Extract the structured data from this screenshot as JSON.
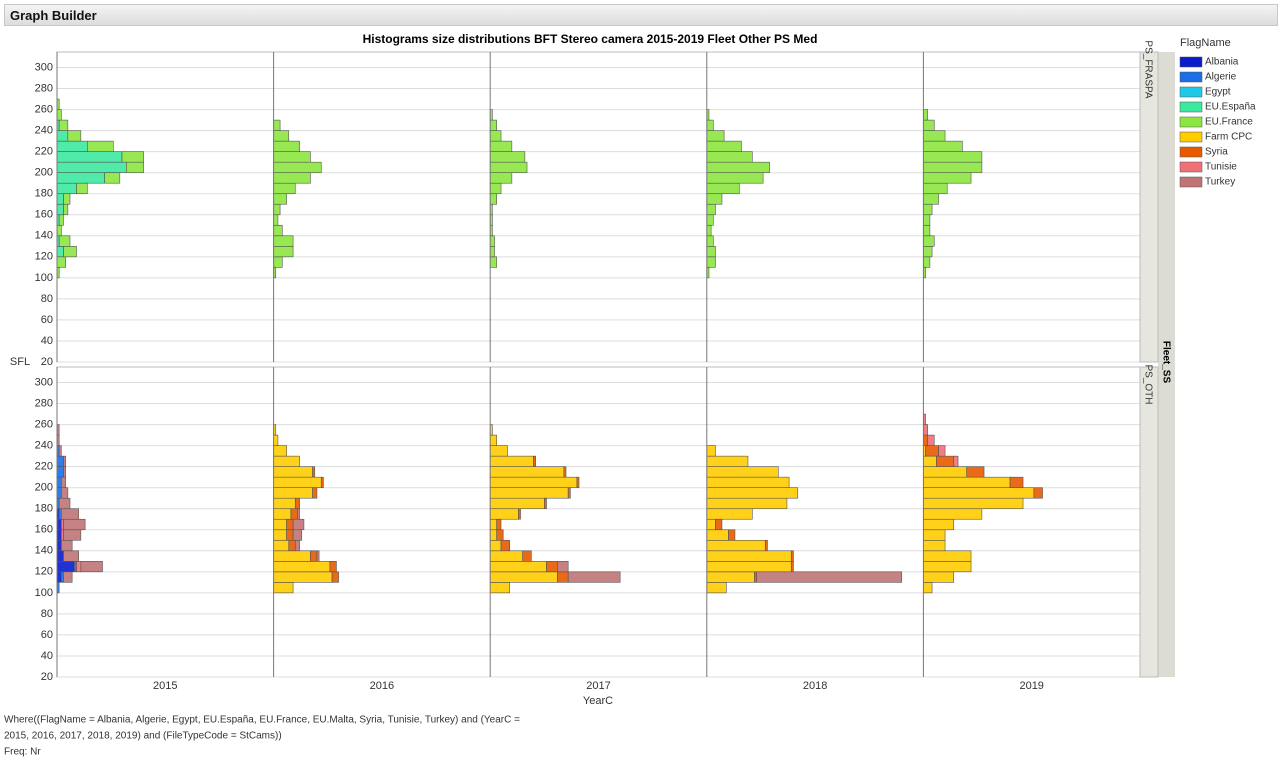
{
  "title_bar": "Graph Builder",
  "chart_data": {
    "type": "histogram",
    "title": "Histograms size distributions BFT Stereo camera 2015-2019 Fleet Other PS Med",
    "y_label": "SFL",
    "x_label": "YearC",
    "group_label": "Fleet_SS",
    "legend_title": "FlagName",
    "columns": [
      "2015",
      "2016",
      "2017",
      "2018",
      "2019"
    ],
    "rows": [
      "PS_FRASPA",
      "PS_OTH"
    ],
    "ylim": [
      20,
      310
    ],
    "yticks": [
      20,
      40,
      60,
      80,
      100,
      120,
      140,
      160,
      180,
      200,
      220,
      240,
      260,
      280,
      300
    ],
    "xlim": [
      0,
      100
    ],
    "grid": true,
    "bins": [
      100,
      110,
      120,
      130,
      140,
      150,
      160,
      170,
      180,
      190,
      200,
      210,
      220,
      230,
      240,
      250,
      260,
      270
    ],
    "series": [
      {
        "name": "Albania",
        "color": "#0a1ccc",
        "values": [
          [
            null,
            null,
            null,
            null,
            null
          ],
          [
            [
              0,
              2,
              8,
              3,
              2,
              2,
              2,
              1,
              0,
              0,
              0,
              0,
              0,
              0,
              0,
              0,
              0
            ],
            null,
            null,
            null,
            null
          ]
        ]
      },
      {
        "name": "Algerie",
        "color": "#1a6fe6",
        "values": [
          [
            null,
            null,
            null,
            null,
            null
          ],
          [
            [
              1,
              1,
              1,
              0,
              0,
              0,
              0,
              1,
              1,
              2,
              2,
              3,
              3,
              1,
              0,
              0,
              0
            ],
            null,
            null,
            null,
            null
          ]
        ]
      },
      {
        "name": "Egypt",
        "color": "#1ec8e8",
        "values": [
          [
            null,
            null,
            null,
            null,
            null
          ],
          [
            null,
            null,
            null,
            null,
            null
          ]
        ]
      },
      {
        "name": "EU.España",
        "color": "#3de8a0",
        "values": [
          [
            [
              0,
              0,
              3,
              1,
              0,
              1,
              3,
              3,
              9,
              22,
              32,
              30,
              14,
              5,
              1,
              0,
              0
            ],
            null,
            null,
            null,
            null
          ],
          [
            null,
            null,
            null,
            null,
            null
          ]
        ]
      },
      {
        "name": "EU.France",
        "color": "#8ce640",
        "values": [
          [
            [
              1,
              4,
              6,
              5,
              2,
              2,
              2,
              3,
              5,
              7,
              8,
              10,
              12,
              6,
              4,
              2,
              1
            ],
            [
              1,
              4,
              9,
              9,
              4,
              2,
              3,
              6,
              10,
              17,
              22,
              17,
              12,
              7,
              3,
              0,
              0
            ],
            [
              0,
              3,
              2,
              2,
              1,
              1,
              1,
              3,
              5,
              10,
              17,
              16,
              10,
              5,
              3,
              1,
              0
            ],
            [
              1,
              4,
              4,
              3,
              2,
              3,
              4,
              7,
              15,
              26,
              29,
              21,
              16,
              8,
              3,
              1,
              0
            ],
            [
              1,
              3,
              4,
              5,
              3,
              3,
              4,
              7,
              11,
              22,
              27,
              27,
              18,
              10,
              5,
              2,
              0
            ]
          ],
          [
            null,
            null,
            null,
            null,
            null
          ]
        ]
      },
      {
        "name": "Farm CPC",
        "color": "#ffcc00",
        "values": [
          [
            null,
            null,
            null,
            null,
            null
          ],
          [
            null,
            [
              9,
              27,
              26,
              17,
              7,
              6,
              6,
              8,
              10,
              18,
              22,
              18,
              12,
              6,
              2,
              1,
              0
            ],
            [
              9,
              31,
              26,
              15,
              5,
              3,
              3,
              13,
              25,
              36,
              40,
              34,
              20,
              8,
              3,
              1,
              0
            ],
            [
              9,
              22,
              39,
              39,
              27,
              10,
              4,
              21,
              37,
              42,
              38,
              33,
              19,
              4,
              0,
              0,
              0
            ],
            [
              4,
              14,
              22,
              22,
              10,
              10,
              14,
              27,
              46,
              51,
              40,
              20,
              6,
              1,
              0,
              0,
              0
            ]
          ]
        ]
      },
      {
        "name": "Syria",
        "color": "#e85a00",
        "values": [
          [
            null,
            null,
            null,
            null,
            null
          ],
          [
            null,
            [
              0,
              3,
              3,
              3,
              3,
              3,
              3,
              3,
              2,
              2,
              1,
              1,
              0,
              0,
              0,
              0,
              0
            ],
            [
              0,
              5,
              5,
              4,
              4,
              3,
              2,
              1,
              1,
              1,
              1,
              1,
              1,
              0,
              0,
              0,
              0
            ],
            [
              0,
              1,
              1,
              1,
              1,
              3,
              3,
              0,
              0,
              0,
              0,
              0,
              0,
              0,
              0,
              0,
              0
            ],
            [
              0,
              0,
              0,
              0,
              0,
              0,
              0,
              0,
              0,
              4,
              6,
              8,
              8,
              6,
              2,
              0,
              0
            ]
          ]
        ]
      },
      {
        "name": "Tunisie",
        "color": "#f07078",
        "values": [
          [
            null,
            null,
            null,
            null,
            null
          ],
          [
            [
              0,
              0,
              2,
              0,
              0,
              1,
              1,
              0,
              0,
              0,
              0,
              0,
              0,
              0,
              0,
              0,
              0
            ],
            null,
            null,
            null,
            [
              0,
              0,
              0,
              0,
              0,
              0,
              0,
              0,
              0,
              0,
              0,
              0,
              2,
              3,
              3,
              2,
              1
            ]
          ]
        ]
      },
      {
        "name": "Turkey",
        "color": "#c07474",
        "values": [
          [
            null,
            null,
            null,
            null,
            null
          ],
          [
            [
              0,
              4,
              10,
              7,
              5,
              8,
              10,
              8,
              5,
              3,
              2,
              1,
              1,
              1,
              1,
              1,
              0
            ],
            [
              0,
              0,
              0,
              1,
              2,
              4,
              5,
              1,
              0,
              0,
              0,
              0,
              0,
              0,
              0,
              0,
              0
            ],
            [
              0,
              24,
              5,
              0,
              0,
              0,
              0,
              0,
              0,
              0,
              0,
              0,
              0,
              0,
              0,
              0,
              0
            ],
            [
              0,
              67,
              0,
              0,
              0,
              0,
              0,
              0,
              0,
              0,
              0,
              0,
              0,
              0,
              0,
              0,
              0
            ],
            null
          ]
        ]
      }
    ]
  },
  "notes": [
    "Where((FlagName = Albania, Algerie, Egypt, EU.España, EU.France, EU.Malta, Syria, Tunisie, Turkey) and (YearC =",
    "2015, 2016, 2017, 2018, 2019) and (FileTypeCode = StCams))",
    "Freq: Nr"
  ]
}
